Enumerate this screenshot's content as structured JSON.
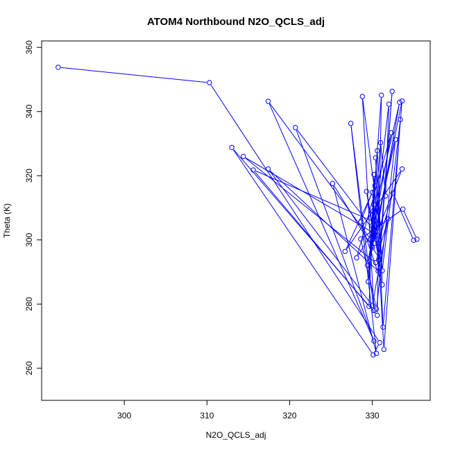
{
  "chart_data": {
    "type": "line",
    "title": "ATOM4 Northbound N2O_QCLS_adj",
    "xlabel": "N2O_QCLS_adj",
    "ylabel": "Theta (K)",
    "xlim": [
      290,
      337
    ],
    "ylim": [
      250,
      362
    ],
    "x_ticks": [
      300,
      310,
      320,
      330
    ],
    "y_ticks": [
      260,
      280,
      300,
      320,
      340,
      360
    ],
    "grid": false,
    "legend": "none",
    "series": [
      {
        "color": "#0000ff",
        "marker": "open-circle",
        "points": [
          {
            "x": 292.0,
            "y": 353.8
          },
          {
            "x": 310.3,
            "y": 349.0
          },
          {
            "x": 330.9,
            "y": 268.0
          },
          {
            "x": 330.1,
            "y": 264.2
          },
          {
            "x": 313.0,
            "y": 328.8
          },
          {
            "x": 330.6,
            "y": 276.5
          },
          {
            "x": 331.1,
            "y": 345.1
          },
          {
            "x": 329.8,
            "y": 300.2
          },
          {
            "x": 317.4,
            "y": 343.2
          },
          {
            "x": 330.2,
            "y": 268.5
          },
          {
            "x": 320.7,
            "y": 335.0
          },
          {
            "x": 330.6,
            "y": 301.5
          },
          {
            "x": 314.4,
            "y": 326.0
          },
          {
            "x": 330.4,
            "y": 292.9
          },
          {
            "x": 331.9,
            "y": 306.5
          },
          {
            "x": 330.0,
            "y": 279.6
          },
          {
            "x": 317.4,
            "y": 322.1
          },
          {
            "x": 330.7,
            "y": 290.3
          },
          {
            "x": 332.4,
            "y": 346.3
          },
          {
            "x": 330.9,
            "y": 294.0
          },
          {
            "x": 325.2,
            "y": 317.6
          },
          {
            "x": 330.5,
            "y": 264.6
          },
          {
            "x": 327.4,
            "y": 336.3
          },
          {
            "x": 330.2,
            "y": 278.0
          },
          {
            "x": 328.8,
            "y": 344.7
          },
          {
            "x": 330.8,
            "y": 305.0
          },
          {
            "x": 315.6,
            "y": 321.8
          },
          {
            "x": 329.6,
            "y": 279.3
          },
          {
            "x": 330.2,
            "y": 320.4
          },
          {
            "x": 331.4,
            "y": 265.9
          },
          {
            "x": 333.4,
            "y": 337.5
          },
          {
            "x": 331.2,
            "y": 290.4
          },
          {
            "x": 330.4,
            "y": 325.6
          },
          {
            "x": 331.3,
            "y": 272.8
          },
          {
            "x": 333.6,
            "y": 343.3
          },
          {
            "x": 330.0,
            "y": 297.6
          },
          {
            "x": 331.0,
            "y": 330.3
          },
          {
            "x": 331.6,
            "y": 313.7
          },
          {
            "x": 332.0,
            "y": 342.3
          },
          {
            "x": 329.5,
            "y": 287.0
          },
          {
            "x": 330.3,
            "y": 316.9
          },
          {
            "x": 328.6,
            "y": 305.6
          },
          {
            "x": 331.2,
            "y": 286.0
          },
          {
            "x": 330.6,
            "y": 327.8
          },
          {
            "x": 329.9,
            "y": 298.0
          },
          {
            "x": 333.6,
            "y": 322.1
          },
          {
            "x": 326.7,
            "y": 296.4
          },
          {
            "x": 330.0,
            "y": 314.8
          },
          {
            "x": 330.7,
            "y": 298.9
          },
          {
            "x": 332.5,
            "y": 314.6
          },
          {
            "x": 335.0,
            "y": 299.9
          },
          {
            "x": 335.4,
            "y": 300.2
          },
          {
            "x": 333.7,
            "y": 309.6
          },
          {
            "x": 328.6,
            "y": 300.3
          },
          {
            "x": 330.5,
            "y": 278.5
          },
          {
            "x": 332.8,
            "y": 331.3
          },
          {
            "x": 329.4,
            "y": 292.1
          },
          {
            "x": 332.3,
            "y": 333.4
          },
          {
            "x": 328.1,
            "y": 294.4
          },
          {
            "x": 330.1,
            "y": 302.8
          },
          {
            "x": 330.2,
            "y": 311.0
          },
          {
            "x": 329.9,
            "y": 304.3
          },
          {
            "x": 333.3,
            "y": 342.9
          },
          {
            "x": 330.3,
            "y": 299.0
          },
          {
            "x": 329.3,
            "y": 315.1
          },
          {
            "x": 330.8,
            "y": 293.6
          },
          {
            "x": 330.1,
            "y": 309.0
          }
        ]
      }
    ]
  }
}
